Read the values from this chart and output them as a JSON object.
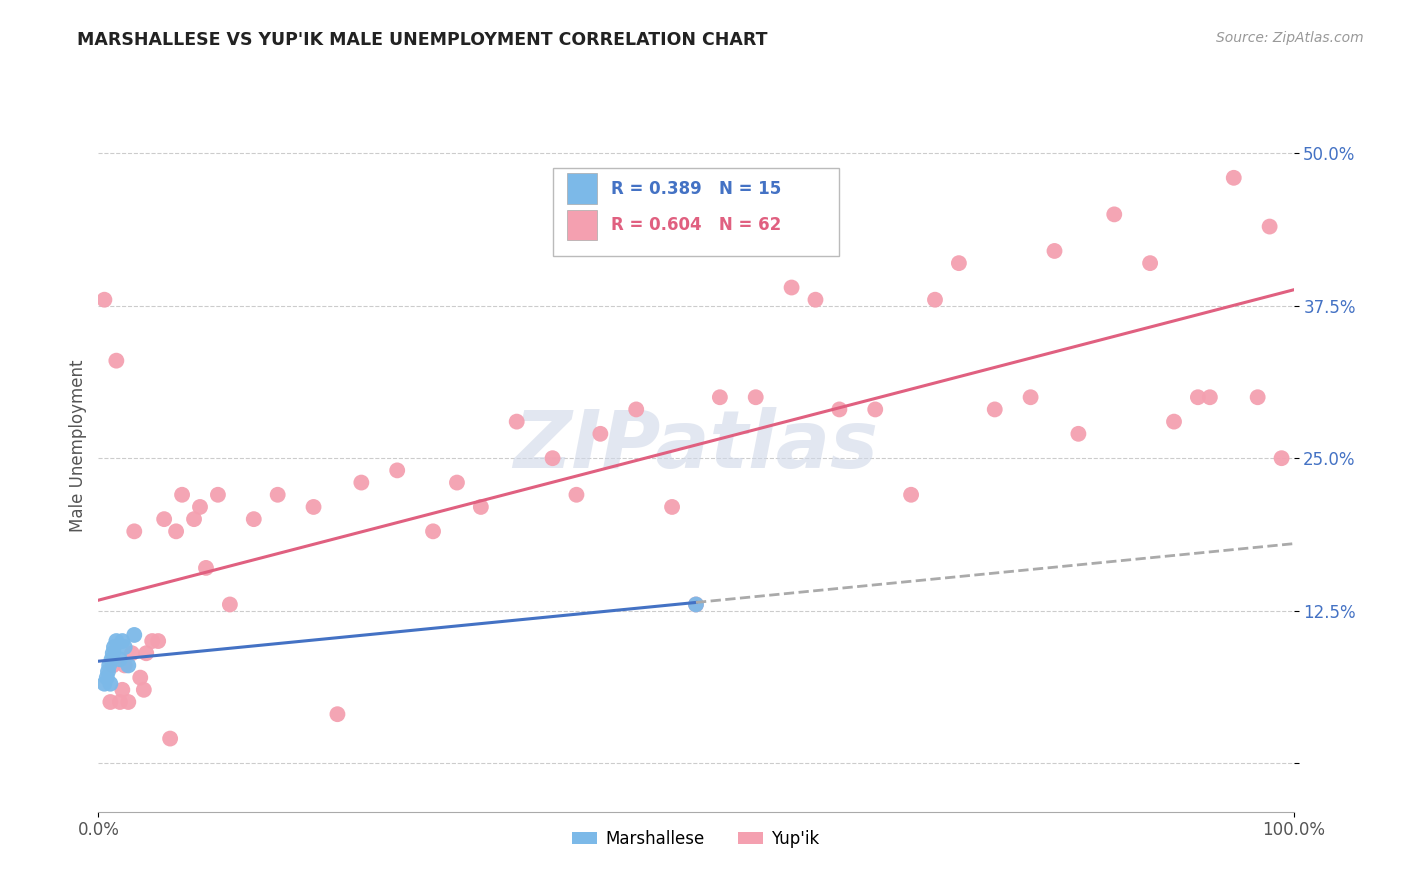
{
  "title": "MARSHALLESE VS YUP'IK MALE UNEMPLOYMENT CORRELATION CHART",
  "source": "Source: ZipAtlas.com",
  "ylabel": "Male Unemployment",
  "xlim": [
    0.0,
    1.0
  ],
  "ylim": [
    -0.04,
    0.56
  ],
  "ytick_vals": [
    0.0,
    0.125,
    0.25,
    0.375,
    0.5
  ],
  "yticklabels": [
    "",
    "12.5%",
    "25.0%",
    "37.5%",
    "50.0%"
  ],
  "legend_r_marshallese": "R = 0.389",
  "legend_n_marshallese": "N = 15",
  "legend_r_yupik": "R = 0.604",
  "legend_n_yupik": "N = 62",
  "legend_label_marshallese": "Marshallese",
  "legend_label_yupik": "Yup'ik",
  "color_marshallese": "#7cb9e8",
  "color_yupik": "#f4a0b0",
  "color_trend_marshallese": "#4472c4",
  "color_trend_yupik": "#e06080",
  "background_color": "#ffffff",
  "marshallese_x": [
    0.005,
    0.007,
    0.008,
    0.009,
    0.01,
    0.011,
    0.012,
    0.013,
    0.015,
    0.018,
    0.02,
    0.022,
    0.025,
    0.03,
    0.5
  ],
  "marshallese_y": [
    0.065,
    0.07,
    0.075,
    0.08,
    0.065,
    0.085,
    0.09,
    0.095,
    0.1,
    0.085,
    0.1,
    0.095,
    0.08,
    0.105,
    0.13
  ],
  "yupik_x": [
    0.005,
    0.01,
    0.012,
    0.015,
    0.018,
    0.02,
    0.022,
    0.025,
    0.028,
    0.03,
    0.035,
    0.038,
    0.04,
    0.045,
    0.05,
    0.055,
    0.06,
    0.065,
    0.07,
    0.08,
    0.085,
    0.09,
    0.1,
    0.11,
    0.13,
    0.15,
    0.18,
    0.2,
    0.22,
    0.25,
    0.28,
    0.3,
    0.32,
    0.35,
    0.38,
    0.4,
    0.42,
    0.45,
    0.48,
    0.5,
    0.52,
    0.55,
    0.58,
    0.6,
    0.62,
    0.65,
    0.68,
    0.7,
    0.72,
    0.75,
    0.78,
    0.8,
    0.82,
    0.85,
    0.88,
    0.9,
    0.92,
    0.93,
    0.95,
    0.97,
    0.98,
    0.99
  ],
  "yupik_y": [
    0.38,
    0.05,
    0.08,
    0.33,
    0.05,
    0.06,
    0.08,
    0.05,
    0.09,
    0.19,
    0.07,
    0.06,
    0.09,
    0.1,
    0.1,
    0.2,
    0.02,
    0.19,
    0.22,
    0.2,
    0.21,
    0.16,
    0.22,
    0.13,
    0.2,
    0.22,
    0.21,
    0.04,
    0.23,
    0.24,
    0.19,
    0.23,
    0.21,
    0.28,
    0.25,
    0.22,
    0.27,
    0.29,
    0.21,
    0.13,
    0.3,
    0.3,
    0.39,
    0.38,
    0.29,
    0.29,
    0.22,
    0.38,
    0.41,
    0.29,
    0.3,
    0.42,
    0.27,
    0.45,
    0.41,
    0.28,
    0.3,
    0.3,
    0.48,
    0.3,
    0.44,
    0.25
  ]
}
